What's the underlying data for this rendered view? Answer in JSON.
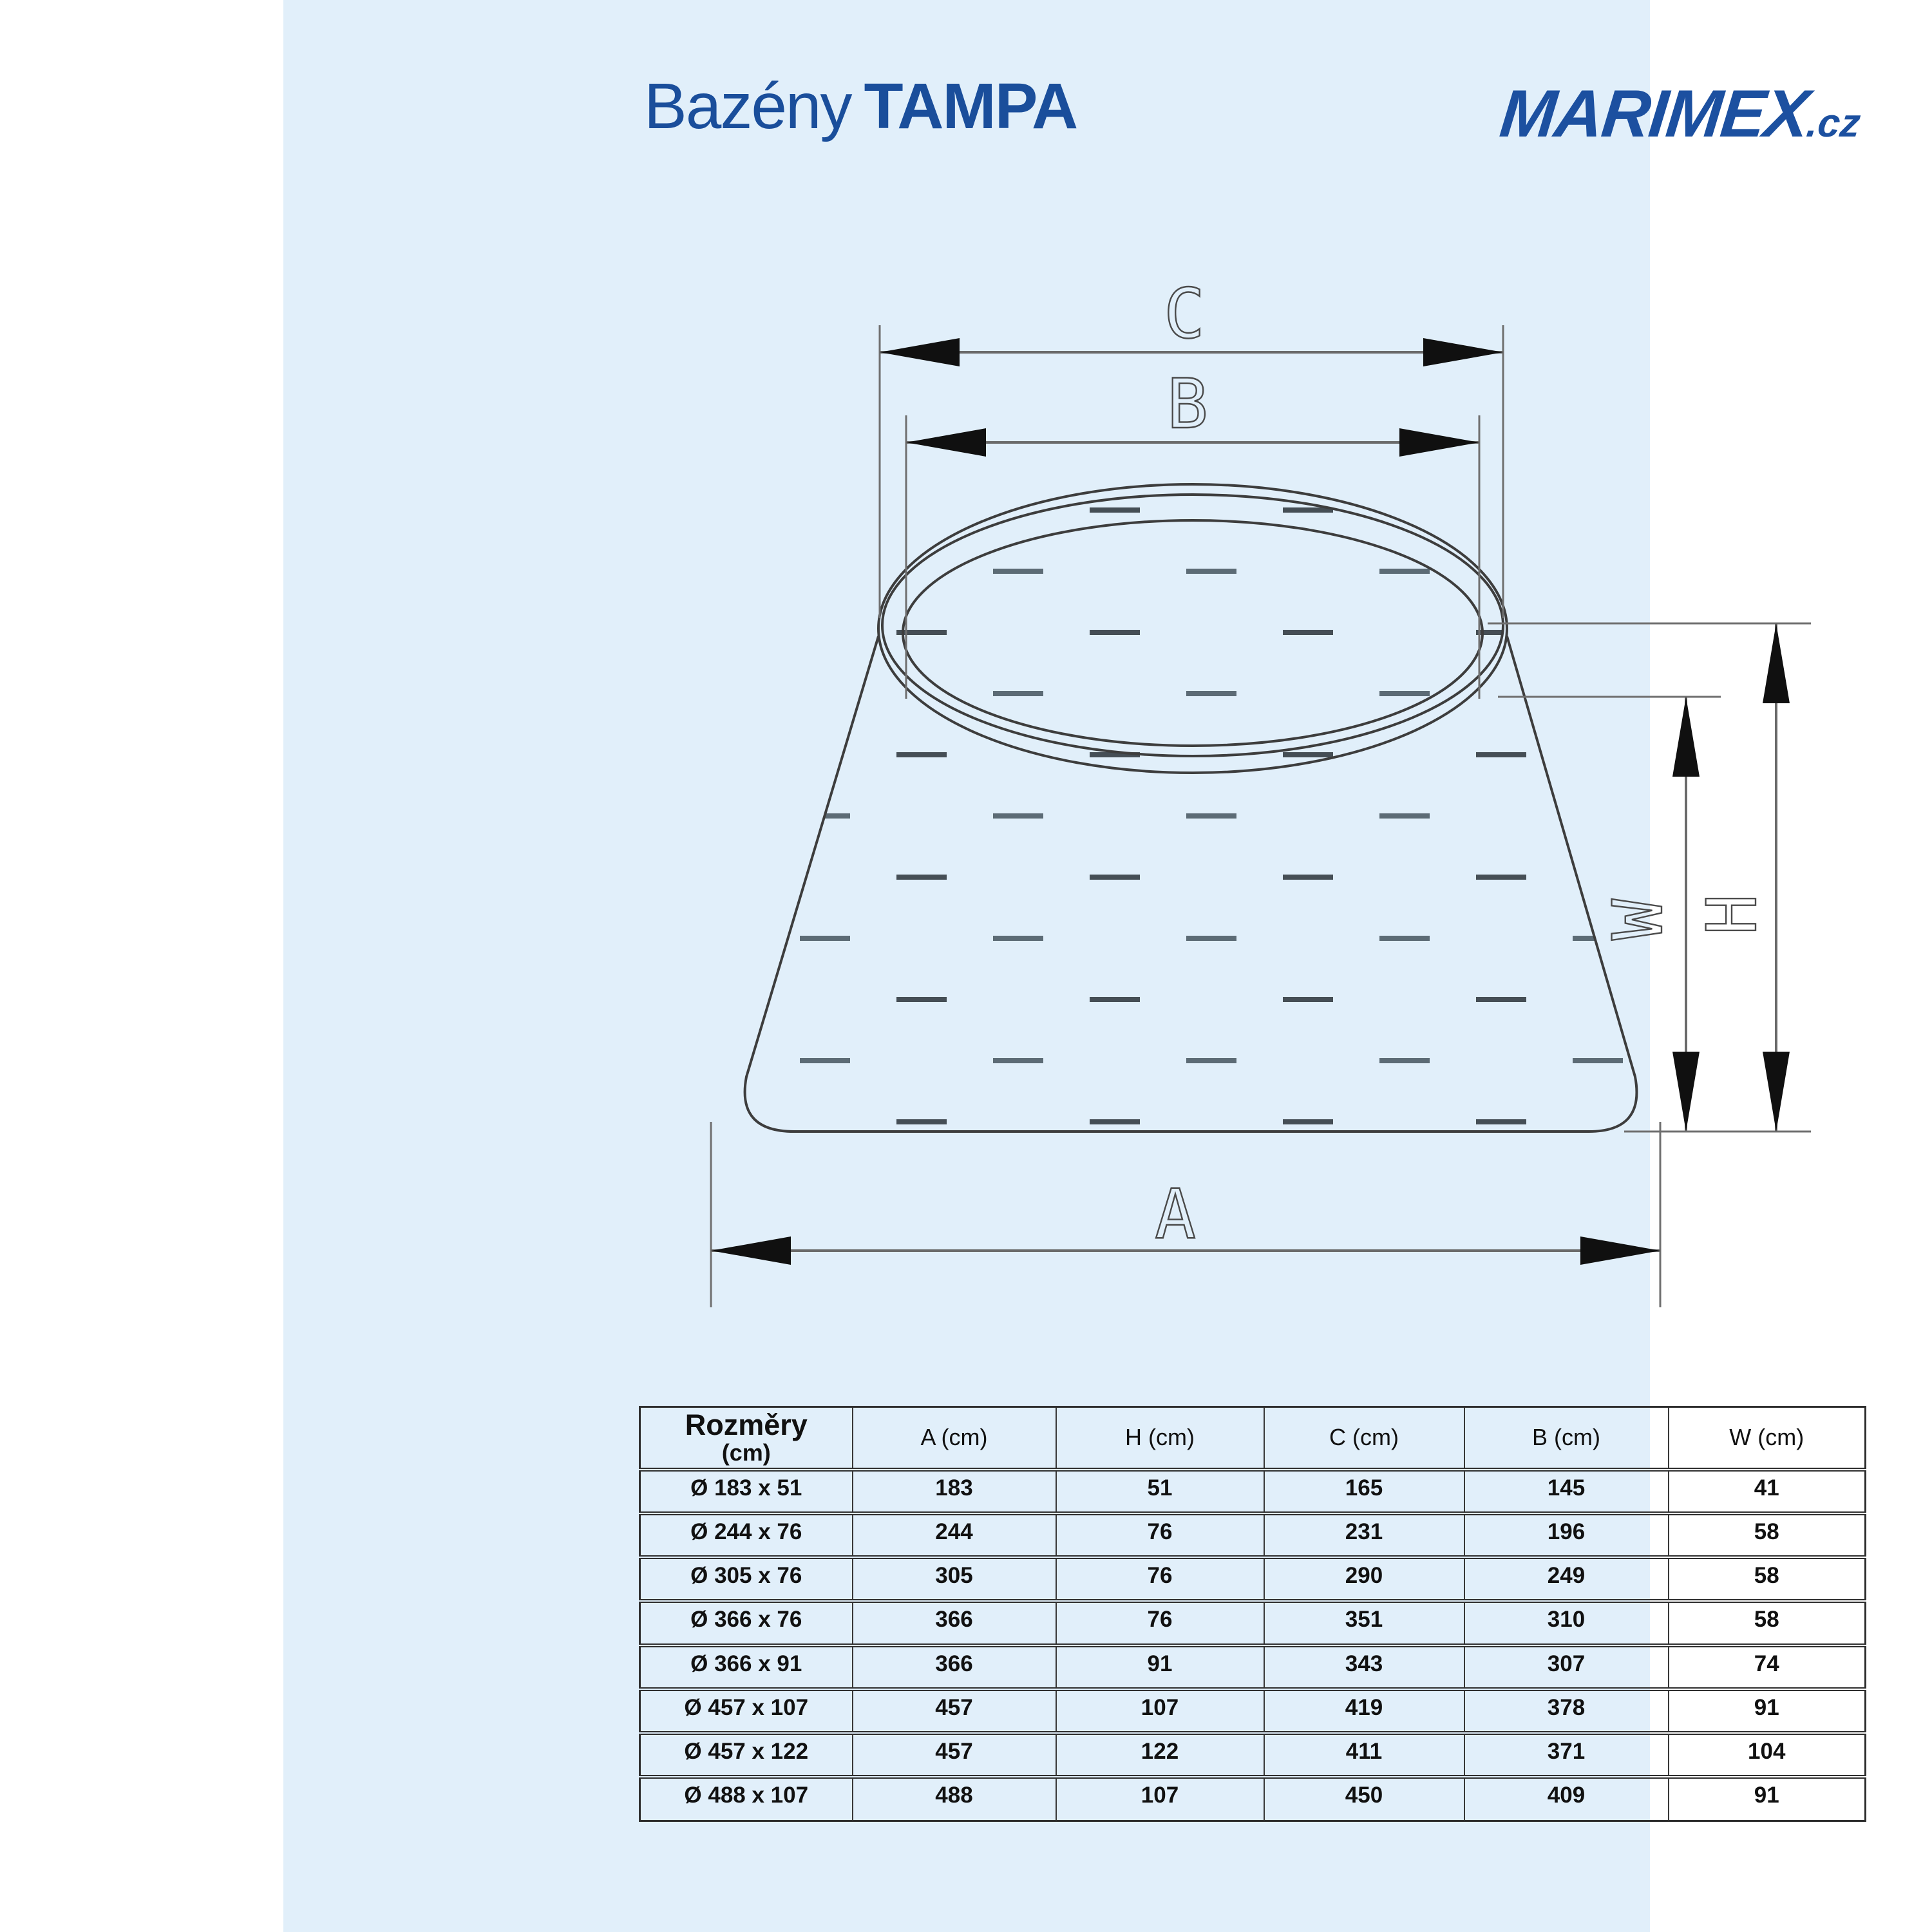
{
  "page": {
    "canvas_bg": "#ffffff",
    "panel_bg": "#e1effa"
  },
  "colors": {
    "brand_blue": "#1a4e9b",
    "drawing_line": "#3d3d3d",
    "dimension_line": "#6a6a6a",
    "arrow": "#101010",
    "table_text": "#111111"
  },
  "header": {
    "brand_left_prefix": "Bazény",
    "brand_left_name": "TAMPA",
    "brand_right_name": "MARIMEX",
    "brand_right_tld": ".cz"
  },
  "diagram": {
    "dimension_labels": {
      "c": "C",
      "b": "B",
      "a": "A",
      "w": "W",
      "h": "H"
    }
  },
  "table": {
    "header": {
      "first_title": "Rozměry",
      "first_unit": "(cm)",
      "columns": [
        "A (cm)",
        "H (cm)",
        "C (cm)",
        "B (cm)",
        "W (cm)"
      ]
    },
    "rows": [
      {
        "size": "Ø 183 x 51",
        "a": "183",
        "h": "51",
        "c": "165",
        "b": "145",
        "w": "41"
      },
      {
        "size": "Ø 244 x 76",
        "a": "244",
        "h": "76",
        "c": "231",
        "b": "196",
        "w": "58"
      },
      {
        "size": "Ø 305 x 76",
        "a": "305",
        "h": "76",
        "c": "290",
        "b": "249",
        "w": "58"
      },
      {
        "size": "Ø 366 x 76",
        "a": "366",
        "h": "76",
        "c": "351",
        "b": "310",
        "w": "58"
      },
      {
        "size": "Ø 366 x 91",
        "a": "366",
        "h": "91",
        "c": "343",
        "b": "307",
        "w": "74"
      },
      {
        "size": "Ø 457 x 107",
        "a": "457",
        "h": "107",
        "c": "419",
        "b": "378",
        "w": "91"
      },
      {
        "size": "Ø 457 x 122",
        "a": "457",
        "h": "122",
        "c": "411",
        "b": "371",
        "w": "104"
      },
      {
        "size": "Ø 488 x 107",
        "a": "488",
        "h": "107",
        "c": "450",
        "b": "409",
        "w": "91"
      }
    ]
  }
}
